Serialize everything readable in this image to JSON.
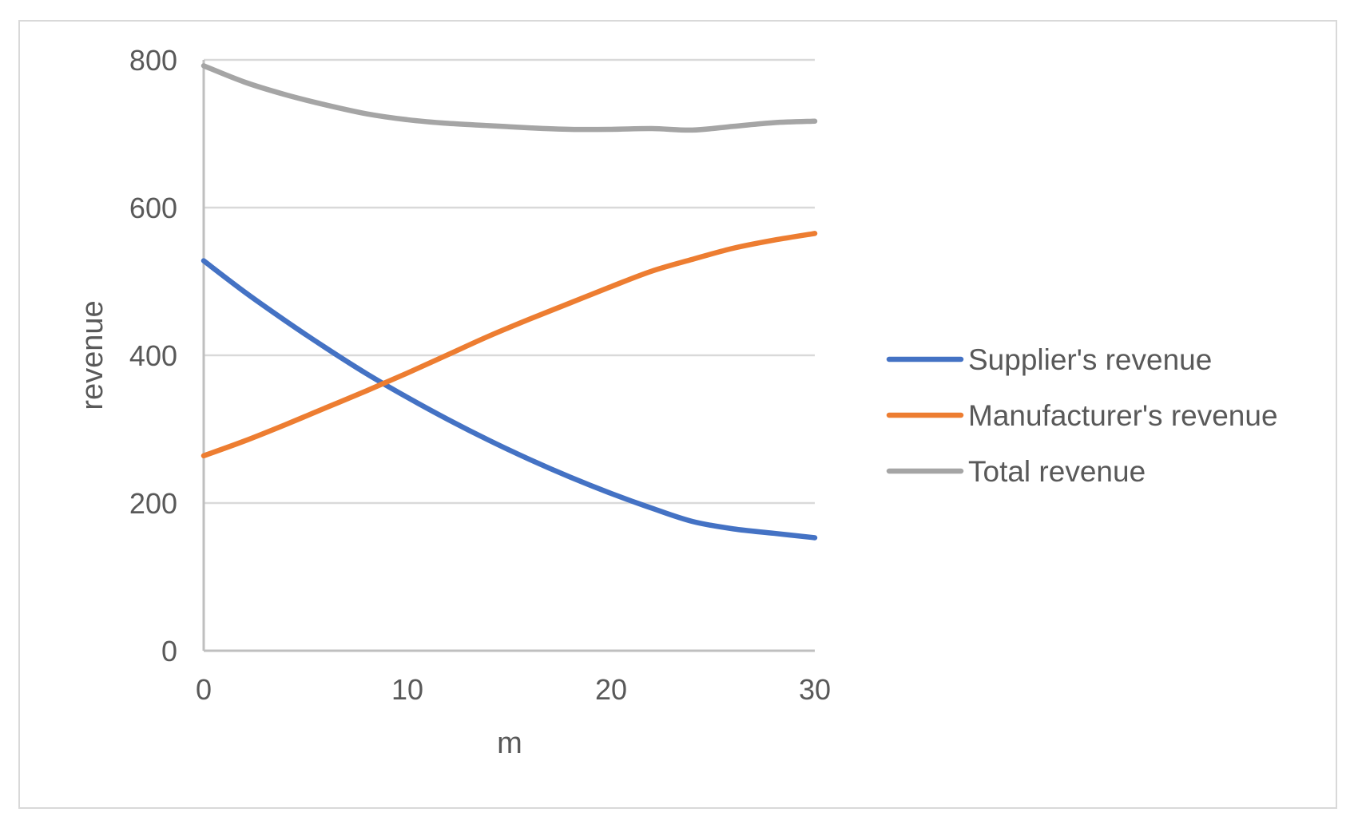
{
  "chart_data": {
    "type": "line",
    "title": "",
    "xlabel": "m",
    "ylabel": "revenue",
    "xlim": [
      0,
      30
    ],
    "ylim": [
      0,
      800
    ],
    "x_ticks": [
      "0",
      "10",
      "20",
      "30"
    ],
    "y_ticks": [
      "0",
      "200",
      "400",
      "600",
      "800"
    ],
    "grid": {
      "horizontal": true,
      "vertical": false
    },
    "legend_position": "right",
    "x": [
      0,
      2,
      4,
      6,
      8,
      10,
      12,
      14,
      16,
      18,
      20,
      22,
      24,
      26,
      28,
      30
    ],
    "series": [
      {
        "name": "Supplier's revenue",
        "color": "#4472C4",
        "values": [
          528,
          486,
          447,
          410,
          375,
          343,
          313,
          285,
          259,
          235,
          213,
          193,
          175,
          165,
          159,
          153
        ]
      },
      {
        "name": "Manufacturer's revenue",
        "color": "#ED7D31",
        "values": [
          264,
          284,
          306,
          329,
          352,
          376,
          401,
          426,
          449,
          471,
          493,
          514,
          530,
          545,
          556,
          565
        ]
      },
      {
        "name": "Total revenue",
        "color": "#A5A5A5",
        "values": [
          792,
          770,
          753,
          739,
          727,
          719,
          714,
          711,
          708,
          706,
          706,
          707,
          705,
          710,
          715,
          717
        ]
      }
    ]
  },
  "colors": {
    "gridline": "#d9d9d9",
    "axis": "#bfbfbf",
    "text": "#595959",
    "frame": "#d9d9d9"
  }
}
